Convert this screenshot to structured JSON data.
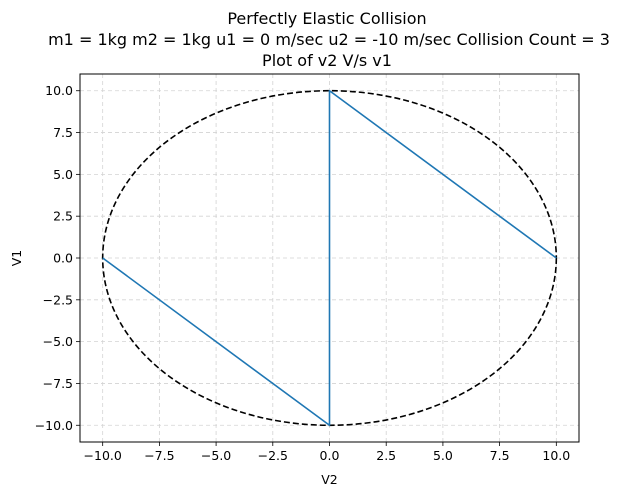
{
  "chart_data": {
    "type": "line",
    "title_lines": [
      "Perfectly Elastic Collision",
      "m1 = 1kg  m2 = 1kg  u1 = 0 m/sec  u2 = -10 m/sec Collision Count = 3",
      "Plot of v2 V/s v1"
    ],
    "xlabel": "V2",
    "ylabel": "V1",
    "xlim": [
      -11,
      11
    ],
    "ylim": [
      -11,
      11
    ],
    "x_ticks": [
      -10.0,
      -7.5,
      -5.0,
      -2.5,
      0.0,
      2.5,
      5.0,
      7.5,
      10.0
    ],
    "y_ticks": [
      -10.0,
      -7.5,
      -5.0,
      -2.5,
      0.0,
      2.5,
      5.0,
      7.5,
      10.0
    ],
    "x_tick_labels": [
      "−10.0",
      "−7.5",
      "−5.0",
      "−2.5",
      "0.0",
      "2.5",
      "5.0",
      "7.5",
      "10.0"
    ],
    "y_tick_labels": [
      "−10.0",
      "−7.5",
      "−5.0",
      "−2.5",
      "0.0",
      "2.5",
      "5.0",
      "7.5",
      "10.0"
    ],
    "grid": true,
    "series": [
      {
        "style": "solid",
        "color": "#1f77b4",
        "x": [
          10,
          0,
          0,
          -10
        ],
        "y": [
          0,
          10,
          -10,
          0
        ]
      }
    ],
    "circle": {
      "style": "dashed",
      "color": "#000000",
      "center": [
        0,
        0
      ],
      "radius": 10
    }
  }
}
